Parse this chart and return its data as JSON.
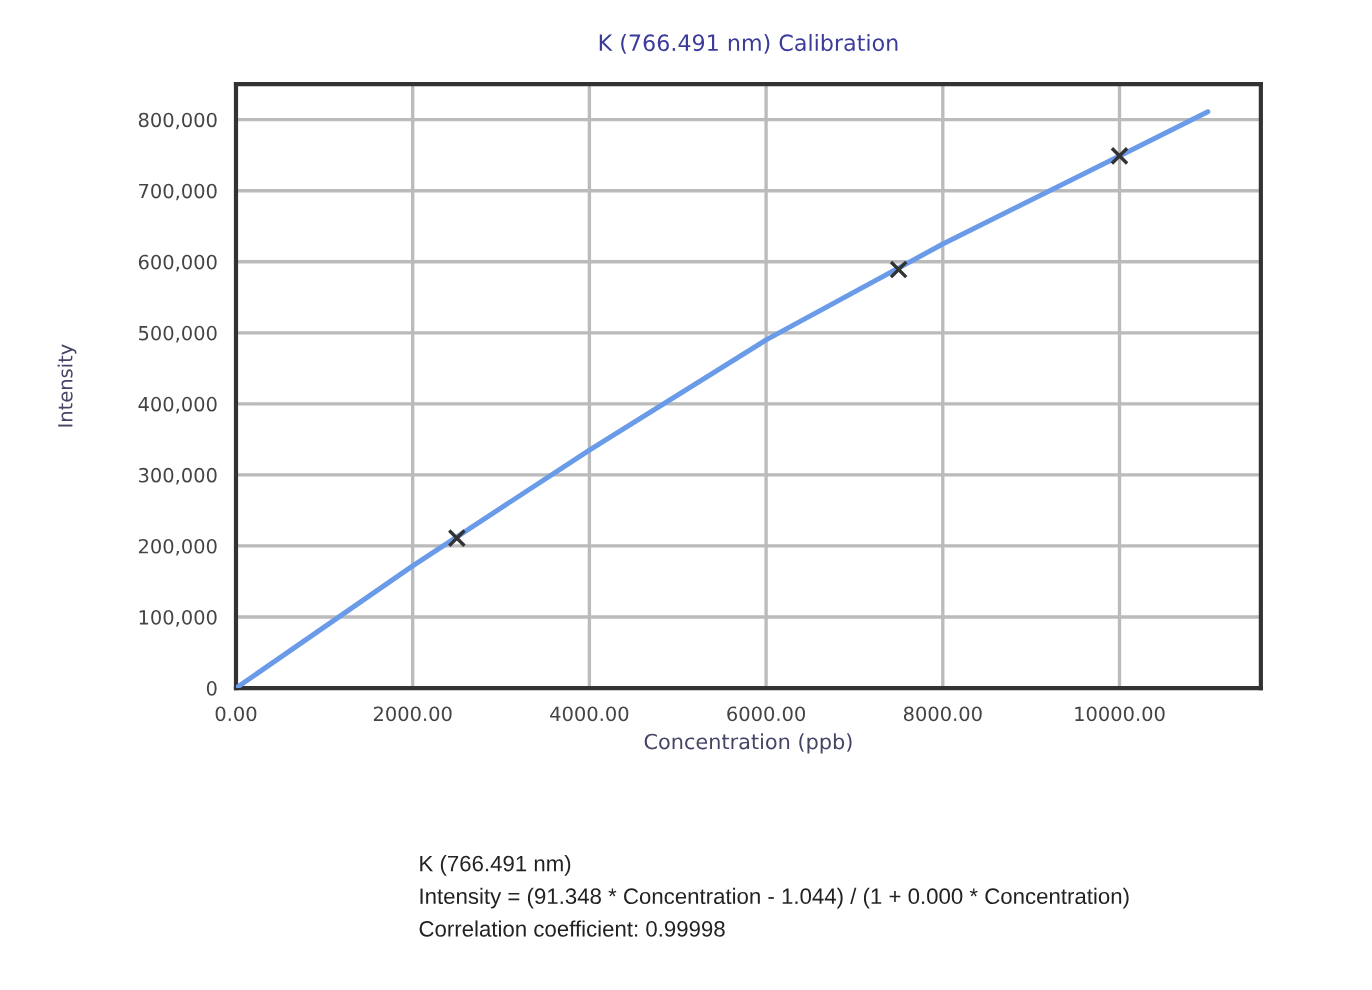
{
  "chart_data": {
    "type": "line",
    "title": "K (766.491 nm) Calibration",
    "xlabel": "Concentration (ppb)",
    "ylabel": "Intensity",
    "xlim": [
      0,
      11600
    ],
    "ylim": [
      0,
      850000
    ],
    "xticks": [
      {
        "value": 0,
        "label": "0.00"
      },
      {
        "value": 2000,
        "label": "2000.00"
      },
      {
        "value": 4000,
        "label": "4000.00"
      },
      {
        "value": 6000,
        "label": "6000.00"
      },
      {
        "value": 8000,
        "label": "8000.00"
      },
      {
        "value": 10000,
        "label": "10000.00"
      }
    ],
    "yticks": [
      0,
      {
        "value": 100000,
        "label": "100,000"
      },
      {
        "value": 200000,
        "label": "200,000"
      },
      {
        "value": 300000,
        "label": "300,000"
      },
      {
        "value": 400000,
        "label": "400,000"
      },
      {
        "value": 500000,
        "label": "500,000"
      },
      {
        "value": 600000,
        "label": "600,000"
      },
      {
        "value": 700000,
        "label": "700,000"
      },
      {
        "value": 800000,
        "label": "800,000"
      }
    ],
    "grid": true,
    "series": [
      {
        "color": "#6a9be8",
        "marker": "none",
        "x": [
          0,
          2000,
          4000,
          6000,
          8000,
          10000,
          11000
        ],
        "values": [
          0,
          172000,
          335000,
          490000,
          625000,
          749000,
          811000
        ]
      },
      {
        "type": "scatter",
        "marker": "cross",
        "color": "#333333",
        "x": [
          2500,
          7500,
          10000
        ],
        "values": [
          211000,
          589000,
          749000
        ]
      }
    ],
    "annotations": [
      "K (766.491 nm)",
      "Intensity = (91.348 * Concentration - 1.044) / (1 + 0.000 * Concentration)",
      "Correlation coefficient: 0.99998"
    ]
  }
}
